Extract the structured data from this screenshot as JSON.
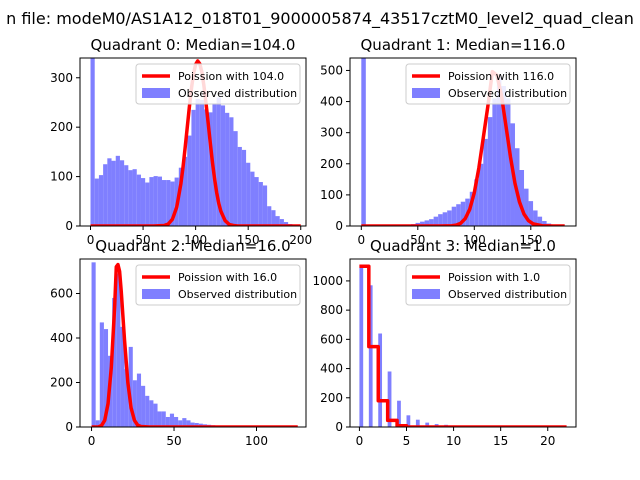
{
  "figure": {
    "suptitle": "n file: modeM0/AS1A12_018T01_9000005874_43517cztM0_level2_quad_clean"
  },
  "colors": {
    "histogram": "#7f7fff",
    "poisson": "#ff0000",
    "axes": "#000000",
    "background": "#ffffff"
  },
  "chart_data": [
    {
      "type": "bar",
      "title": "Quadrant 0: Median=104.0",
      "xlim": [
        -10,
        205
      ],
      "ylim": [
        0,
        340
      ],
      "xticks": [
        0,
        50,
        100,
        150,
        200
      ],
      "yticks": [
        0,
        100,
        200,
        300
      ],
      "legend": {
        "placement": "top-right",
        "entries": [
          "Poission with 104.0",
          "Observed distribution"
        ]
      },
      "hist_bin_width": 4,
      "hist_x": [
        0,
        4,
        8,
        12,
        16,
        20,
        24,
        28,
        32,
        36,
        40,
        44,
        48,
        52,
        56,
        60,
        64,
        68,
        72,
        76,
        80,
        84,
        88,
        92,
        96,
        100,
        104,
        108,
        112,
        116,
        120,
        124,
        128,
        132,
        136,
        140,
        144,
        148,
        152,
        156,
        160,
        164,
        168,
        172,
        176,
        180,
        184,
        188,
        192,
        196
      ],
      "hist_y": [
        340,
        96,
        103,
        125,
        137,
        132,
        142,
        133,
        123,
        113,
        115,
        104,
        97,
        88,
        99,
        101,
        100,
        93,
        93,
        90,
        98,
        118,
        140,
        183,
        235,
        257,
        255,
        236,
        230,
        248,
        260,
        244,
        229,
        220,
        192,
        160,
        154,
        128,
        110,
        99,
        89,
        82,
        40,
        32,
        20,
        14,
        8,
        4,
        2,
        1
      ],
      "poisson_x": [
        0,
        10,
        20,
        30,
        40,
        50,
        60,
        70,
        74,
        78,
        82,
        86,
        88,
        90,
        92,
        94,
        96,
        98,
        100,
        102,
        104,
        106,
        108,
        110,
        112,
        114,
        116,
        118,
        120,
        122,
        124,
        128,
        132,
        136,
        140,
        150,
        160,
        180,
        200
      ],
      "poisson_y": [
        0,
        0,
        0,
        0,
        0,
        0,
        0,
        1,
        4,
        14,
        38,
        86,
        119,
        158,
        199,
        240,
        278,
        308,
        327,
        334,
        328,
        311,
        282,
        246,
        207,
        167,
        129,
        96,
        68,
        46,
        30,
        11,
        3,
        1,
        0,
        0,
        0,
        0,
        0
      ]
    },
    {
      "type": "bar",
      "title": "Quadrant 1: Median=116.0",
      "xlim": [
        -10,
        190
      ],
      "ylim": [
        0,
        540
      ],
      "xticks": [
        0,
        50,
        100,
        150
      ],
      "yticks": [
        0,
        100,
        200,
        300,
        400,
        500
      ],
      "legend": {
        "placement": "top-right",
        "entries": [
          "Poission with 116.0",
          "Observed distribution"
        ]
      },
      "hist_bin_width": 4,
      "hist_x": [
        0,
        4,
        8,
        12,
        16,
        20,
        24,
        28,
        32,
        36,
        40,
        44,
        48,
        52,
        56,
        60,
        64,
        68,
        72,
        76,
        80,
        84,
        88,
        92,
        96,
        100,
        104,
        108,
        112,
        116,
        120,
        124,
        128,
        132,
        136,
        140,
        144,
        148,
        152,
        156,
        160,
        164,
        168,
        172,
        176,
        180
      ],
      "hist_y": [
        540,
        0,
        0,
        0,
        0,
        0,
        0,
        0,
        0,
        0,
        2,
        6,
        10,
        14,
        18,
        22,
        30,
        38,
        44,
        50,
        62,
        70,
        78,
        88,
        110,
        150,
        200,
        280,
        350,
        410,
        480,
        450,
        410,
        330,
        250,
        180,
        120,
        80,
        50,
        30,
        16,
        8,
        4,
        2,
        1,
        0
      ],
      "poisson_x": [
        0,
        20,
        40,
        60,
        70,
        80,
        84,
        88,
        92,
        96,
        100,
        104,
        108,
        112,
        116,
        120,
        124,
        128,
        132,
        136,
        140,
        144,
        148,
        152,
        160,
        170,
        180
      ],
      "poisson_y": [
        0,
        0,
        0,
        0,
        0,
        1,
        3,
        9,
        24,
        54,
        107,
        186,
        285,
        385,
        496,
        485,
        420,
        322,
        222,
        137,
        77,
        38,
        17,
        7,
        1,
        0,
        0
      ]
    },
    {
      "type": "bar",
      "title": "Quadrant 2: Median=16.0",
      "xlim": [
        -7,
        130
      ],
      "ylim": [
        0,
        755
      ],
      "xticks": [
        0,
        50,
        100
      ],
      "yticks": [
        0,
        200,
        400,
        600
      ],
      "legend": {
        "placement": "top-right",
        "entries": [
          "Poission with 16.0",
          "Observed distribution"
        ]
      },
      "hist_bin_width": 2.5,
      "hist_x": [
        0,
        2.5,
        5,
        7.5,
        10,
        12.5,
        15,
        17.5,
        20,
        22.5,
        25,
        27.5,
        30,
        32.5,
        35,
        37.5,
        40,
        42.5,
        45,
        47.5,
        50,
        52.5,
        55,
        57.5,
        60,
        62.5,
        65,
        67.5,
        70,
        72.5,
        75,
        77.5,
        80,
        82.5,
        85,
        87.5,
        90,
        92.5,
        95,
        97.5,
        100
      ],
      "hist_y": [
        740,
        30,
        470,
        440,
        320,
        580,
        690,
        450,
        260,
        360,
        210,
        240,
        185,
        140,
        120,
        105,
        70,
        70,
        45,
        60,
        45,
        30,
        40,
        30,
        20,
        18,
        15,
        12,
        10,
        8,
        6,
        5,
        4,
        3,
        2,
        2,
        2,
        1,
        1,
        1,
        0
      ],
      "poisson_x": [
        0,
        4,
        6,
        8,
        10,
        12,
        14,
        15,
        16,
        17,
        18,
        20,
        22,
        24,
        26,
        28,
        30,
        35,
        40,
        50,
        60,
        80,
        100,
        125
      ],
      "poisson_y": [
        0,
        0,
        6,
        30,
        105,
        270,
        540,
        720,
        730,
        700,
        610,
        390,
        200,
        85,
        30,
        8,
        2,
        0,
        0,
        0,
        0,
        0,
        0,
        0
      ]
    },
    {
      "type": "bar",
      "title": "Quadrant 3: Median=1.0",
      "xlim": [
        -1,
        23
      ],
      "ylim": [
        0,
        1150
      ],
      "xticks": [
        0,
        5,
        10,
        15,
        20
      ],
      "yticks": [
        0,
        200,
        400,
        600,
        800,
        1000
      ],
      "legend": {
        "placement": "top-right",
        "entries": [
          "Poission with 1.0",
          "Observed distribution"
        ]
      },
      "hist_bin_width": 0.4,
      "hist_x": [
        0,
        1,
        2,
        3,
        4,
        5,
        6,
        7,
        8,
        9,
        10,
        11,
        12,
        13,
        14,
        15,
        16,
        17,
        18,
        19,
        20,
        21
      ],
      "hist_y": [
        1110,
        970,
        640,
        380,
        180,
        80,
        50,
        30,
        20,
        15,
        10,
        8,
        5,
        4,
        3,
        2,
        2,
        1,
        1,
        1,
        0,
        0
      ],
      "poisson_x": [
        0,
        1,
        1,
        2,
        2,
        3,
        3,
        4,
        4,
        5,
        5,
        6,
        7,
        10,
        15,
        20,
        22
      ],
      "poisson_y": [
        1100,
        1100,
        550,
        550,
        180,
        180,
        45,
        45,
        9,
        9,
        1,
        0,
        0,
        0,
        0,
        0,
        0
      ]
    }
  ]
}
